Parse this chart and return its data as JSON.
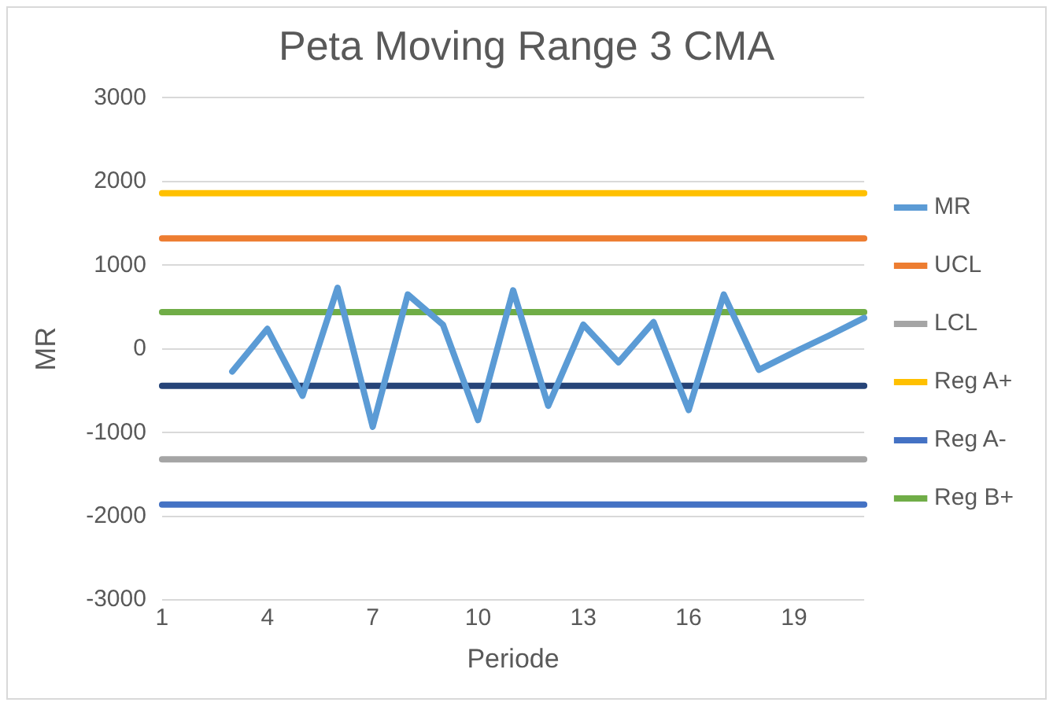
{
  "chart_data": {
    "type": "line",
    "title": "Peta Moving Range 3 CMA",
    "xlabel": "Periode",
    "ylabel": "MR",
    "categories": [
      "1",
      null,
      null,
      "4",
      null,
      null,
      "7",
      null,
      null,
      "10",
      null,
      null,
      "13",
      null,
      null,
      "16",
      null,
      null,
      "19",
      null,
      null
    ],
    "series": [
      {
        "name": "MR",
        "color": "#5b9bd5",
        "values": [
          null,
          null,
          -270,
          240,
          -560,
          730,
          -930,
          650,
          290,
          -850,
          700,
          -680,
          290,
          -160,
          320,
          -730,
          650,
          -250,
          -40,
          160,
          370
        ]
      },
      {
        "name": "UCL",
        "color": "#ed7d31",
        "values": [
          1320,
          1320,
          1320,
          1320,
          1320,
          1320,
          1320,
          1320,
          1320,
          1320,
          1320,
          1320,
          1320,
          1320,
          1320,
          1320,
          1320,
          1320,
          1320,
          1320,
          1320
        ]
      },
      {
        "name": "LCL",
        "color": "#a5a5a5",
        "values": [
          -1320,
          -1320,
          -1320,
          -1320,
          -1320,
          -1320,
          -1320,
          -1320,
          -1320,
          -1320,
          -1320,
          -1320,
          -1320,
          -1320,
          -1320,
          -1320,
          -1320,
          -1320,
          -1320,
          -1320,
          -1320
        ]
      },
      {
        "name": "Reg A+",
        "color": "#ffc000",
        "values": [
          1860,
          1860,
          1860,
          1860,
          1860,
          1860,
          1860,
          1860,
          1860,
          1860,
          1860,
          1860,
          1860,
          1860,
          1860,
          1860,
          1860,
          1860,
          1860,
          1860,
          1860
        ]
      },
      {
        "name": "Reg A-",
        "color": "#4472c4",
        "values": [
          -1860,
          -1860,
          -1860,
          -1860,
          -1860,
          -1860,
          -1860,
          -1860,
          -1860,
          -1860,
          -1860,
          -1860,
          -1860,
          -1860,
          -1860,
          -1860,
          -1860,
          -1860,
          -1860,
          -1860,
          -1860
        ]
      },
      {
        "name": "Reg B+",
        "color": "#70ad47",
        "values": [
          440,
          440,
          440,
          440,
          440,
          440,
          440,
          440,
          440,
          440,
          440,
          440,
          440,
          440,
          440,
          440,
          440,
          440,
          440,
          440,
          440
        ]
      },
      {
        "color": "#264478",
        "values": [
          -440,
          -440,
          -440,
          -440,
          -440,
          -440,
          -440,
          -440,
          -440,
          -440,
          -440,
          -440,
          -440,
          -440,
          -440,
          -440,
          -440,
          -440,
          -440,
          -440,
          -440
        ]
      }
    ],
    "ylim": [
      -3000,
      3000
    ],
    "yticks": [
      -3000,
      -2000,
      -1000,
      0,
      1000,
      2000,
      3000
    ],
    "grid": "y",
    "legend": "right",
    "marker": "none",
    "line_style": "solid"
  }
}
